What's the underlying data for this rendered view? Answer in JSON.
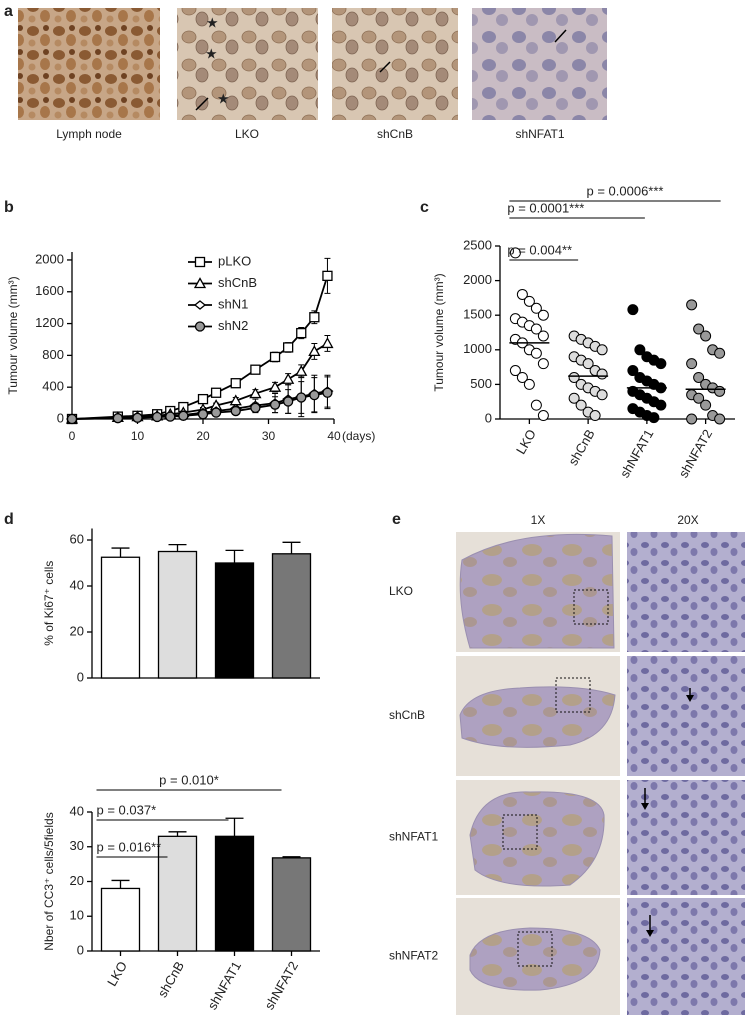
{
  "panel_a": {
    "label": "a",
    "captions": [
      "Lymph node",
      "LKO",
      "shCnB",
      "shNFAT1"
    ]
  },
  "panel_e": {
    "label": "e",
    "columns": [
      "1X",
      "20X"
    ],
    "rows": [
      "LKO",
      "shCnB",
      "shNFAT1",
      "shNFAT2"
    ]
  },
  "chart_data": [
    {
      "type": "line",
      "label": "b",
      "y_label": "Tumour volume (mm³)",
      "x_label": "(days)",
      "x": [
        0,
        7,
        10,
        13,
        15,
        17,
        20,
        22,
        25,
        28,
        31,
        33,
        35,
        37,
        39
      ],
      "xlim": [
        0,
        40
      ],
      "xticks": [
        0,
        10,
        20,
        30,
        40
      ],
      "ylim": [
        0,
        2100
      ],
      "yticks": [
        0,
        400,
        800,
        1200,
        1600,
        2000
      ],
      "series": [
        {
          "name": "pLKO",
          "marker": "square",
          "color": "#ffffff",
          "values": [
            0,
            30,
            40,
            60,
            100,
            150,
            250,
            330,
            450,
            620,
            780,
            900,
            1080,
            1280,
            1800
          ],
          "errors": [
            0,
            10,
            10,
            15,
            20,
            25,
            30,
            35,
            40,
            50,
            60,
            60,
            70,
            80,
            220
          ]
        },
        {
          "name": "shCnB",
          "marker": "triangle",
          "color": "#ffffff",
          "values": [
            0,
            20,
            30,
            40,
            60,
            80,
            120,
            170,
            230,
            320,
            400,
            500,
            600,
            850,
            950
          ],
          "errors": [
            0,
            5,
            10,
            10,
            15,
            20,
            25,
            30,
            40,
            50,
            60,
            70,
            80,
            100,
            100
          ]
        },
        {
          "name": "shN1",
          "marker": "diamond",
          "color": "#ffffff",
          "values": [
            0,
            10,
            20,
            30,
            40,
            50,
            80,
            100,
            130,
            170,
            200,
            250,
            280,
            320,
            350
          ],
          "errors": [
            0,
            5,
            5,
            10,
            10,
            15,
            20,
            30,
            50,
            80,
            120,
            180,
            250,
            230,
            200
          ]
        },
        {
          "name": "shN2",
          "marker": "circle",
          "color": "#999999",
          "values": [
            0,
            10,
            15,
            25,
            30,
            40,
            60,
            80,
            100,
            140,
            180,
            220,
            270,
            300,
            330
          ],
          "errors": [
            0,
            5,
            5,
            10,
            10,
            15,
            20,
            25,
            40,
            60,
            100,
            150,
            200,
            220,
            200
          ]
        }
      ]
    },
    {
      "type": "dot",
      "label": "c",
      "y_label": "Tumour volume (mm³)",
      "categories": [
        "LKO",
        "shCnB",
        "shNFAT1",
        "shNFAT2"
      ],
      "colors": [
        "#ffffff",
        "#dddddd",
        "#000000",
        "#999999"
      ],
      "ylim": [
        0,
        2500
      ],
      "yticks": [
        0,
        500,
        1000,
        1500,
        2000,
        2500
      ],
      "values": [
        [
          2400,
          1800,
          1700,
          1600,
          1500,
          1450,
          1400,
          1350,
          1300,
          1200,
          1150,
          1100,
          1000,
          950,
          800,
          700,
          600,
          500,
          200,
          50
        ],
        [
          1200,
          1150,
          1100,
          1050,
          1000,
          900,
          850,
          800,
          700,
          650,
          600,
          500,
          450,
          400,
          350,
          300,
          200,
          100,
          50
        ],
        [
          1580,
          1000,
          900,
          850,
          800,
          700,
          600,
          550,
          500,
          450,
          400,
          350,
          300,
          250,
          200,
          150,
          100,
          50,
          20
        ],
        [
          1650,
          1300,
          1200,
          1000,
          950,
          800,
          600,
          500,
          450,
          400,
          350,
          300,
          200,
          50,
          0,
          0
        ]
      ],
      "means": [
        1100,
        620,
        450,
        430
      ],
      "annotations": [
        "p = 0.004**",
        "p = 0.0001***",
        "p = 0.0006***"
      ]
    },
    {
      "type": "bar",
      "label": "d",
      "y_label": "% of Ki67⁺ cells",
      "colors": [
        "#ffffff",
        "#dddddd",
        "#000000",
        "#777777"
      ],
      "ylim": [
        0,
        65
      ],
      "yticks": [
        0,
        20,
        40,
        60
      ],
      "values": [
        52.5,
        55,
        50,
        54
      ],
      "errors": [
        4,
        3,
        5.5,
        5
      ]
    },
    {
      "type": "bar",
      "y_label": "Nber of CC3⁺ cells/5fields",
      "categories": [
        "LKO",
        "shCnB",
        "shNFAT1",
        "shNFAT2"
      ],
      "colors": [
        "#ffffff",
        "#dddddd",
        "#000000",
        "#777777"
      ],
      "ylim": [
        0,
        40
      ],
      "yticks": [
        0,
        10,
        20,
        30,
        40
      ],
      "values": [
        18,
        33,
        33,
        26.8
      ],
      "errors": [
        2.3,
        1.3,
        5.2,
        0.3
      ],
      "annotations": [
        "p = 0.016**",
        "p = 0.037*",
        "p = 0.010*"
      ]
    }
  ]
}
